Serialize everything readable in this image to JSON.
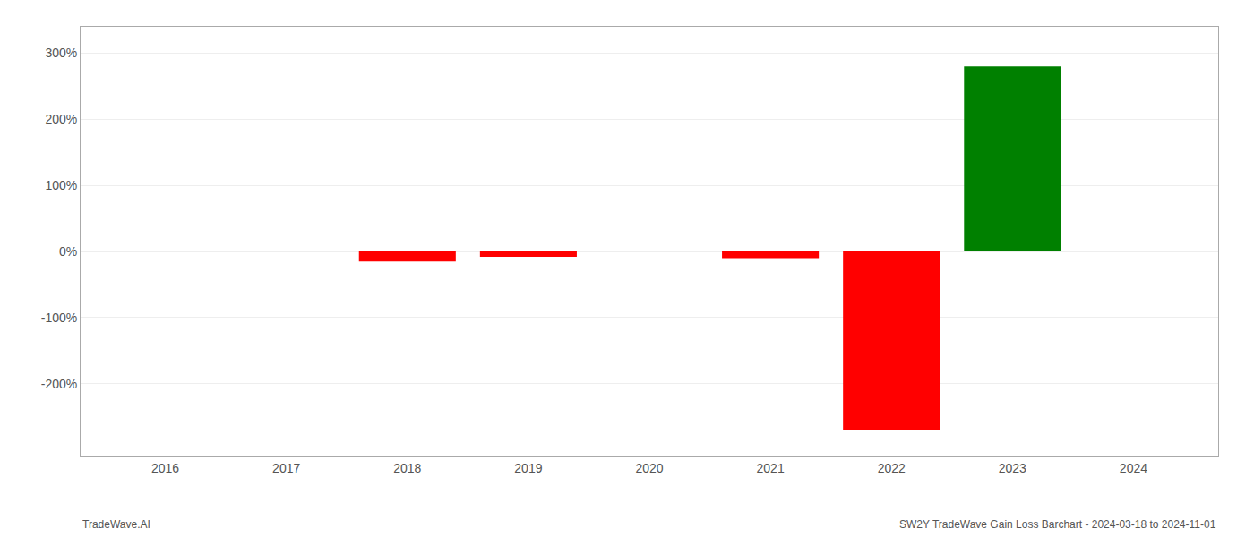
{
  "chart_data": {
    "type": "bar",
    "x": [
      2016,
      2017,
      2018,
      2019,
      2020,
      2021,
      2022,
      2023,
      2024
    ],
    "values": [
      0.0,
      0.0,
      -15.0,
      -8.0,
      0.0,
      -10.0,
      -270.0,
      280.0,
      0.0
    ],
    "colors": [
      "red",
      "red",
      "red",
      "red",
      "red",
      "red",
      "red",
      "green",
      "red"
    ],
    "xlim": [
      2015.3,
      2024.7
    ],
    "xticks": [
      2016,
      2017,
      2018,
      2019,
      2020,
      2021,
      2022,
      2023,
      2024
    ],
    "ylim": [
      -310,
      340
    ],
    "yticks": [
      {
        "value": -200,
        "label": "-200%"
      },
      {
        "value": -100,
        "label": "-100%"
      },
      {
        "value": 0,
        "label": "0%"
      },
      {
        "value": 100,
        "label": "100%"
      },
      {
        "value": 200,
        "label": "200%"
      },
      {
        "value": 300,
        "label": "300%"
      }
    ],
    "grid": true,
    "annotations": [
      "TradeWave.AI",
      "SW2Y TradeWave Gain Loss Barchart - 2024-03-18 to 2024-11-01"
    ]
  }
}
